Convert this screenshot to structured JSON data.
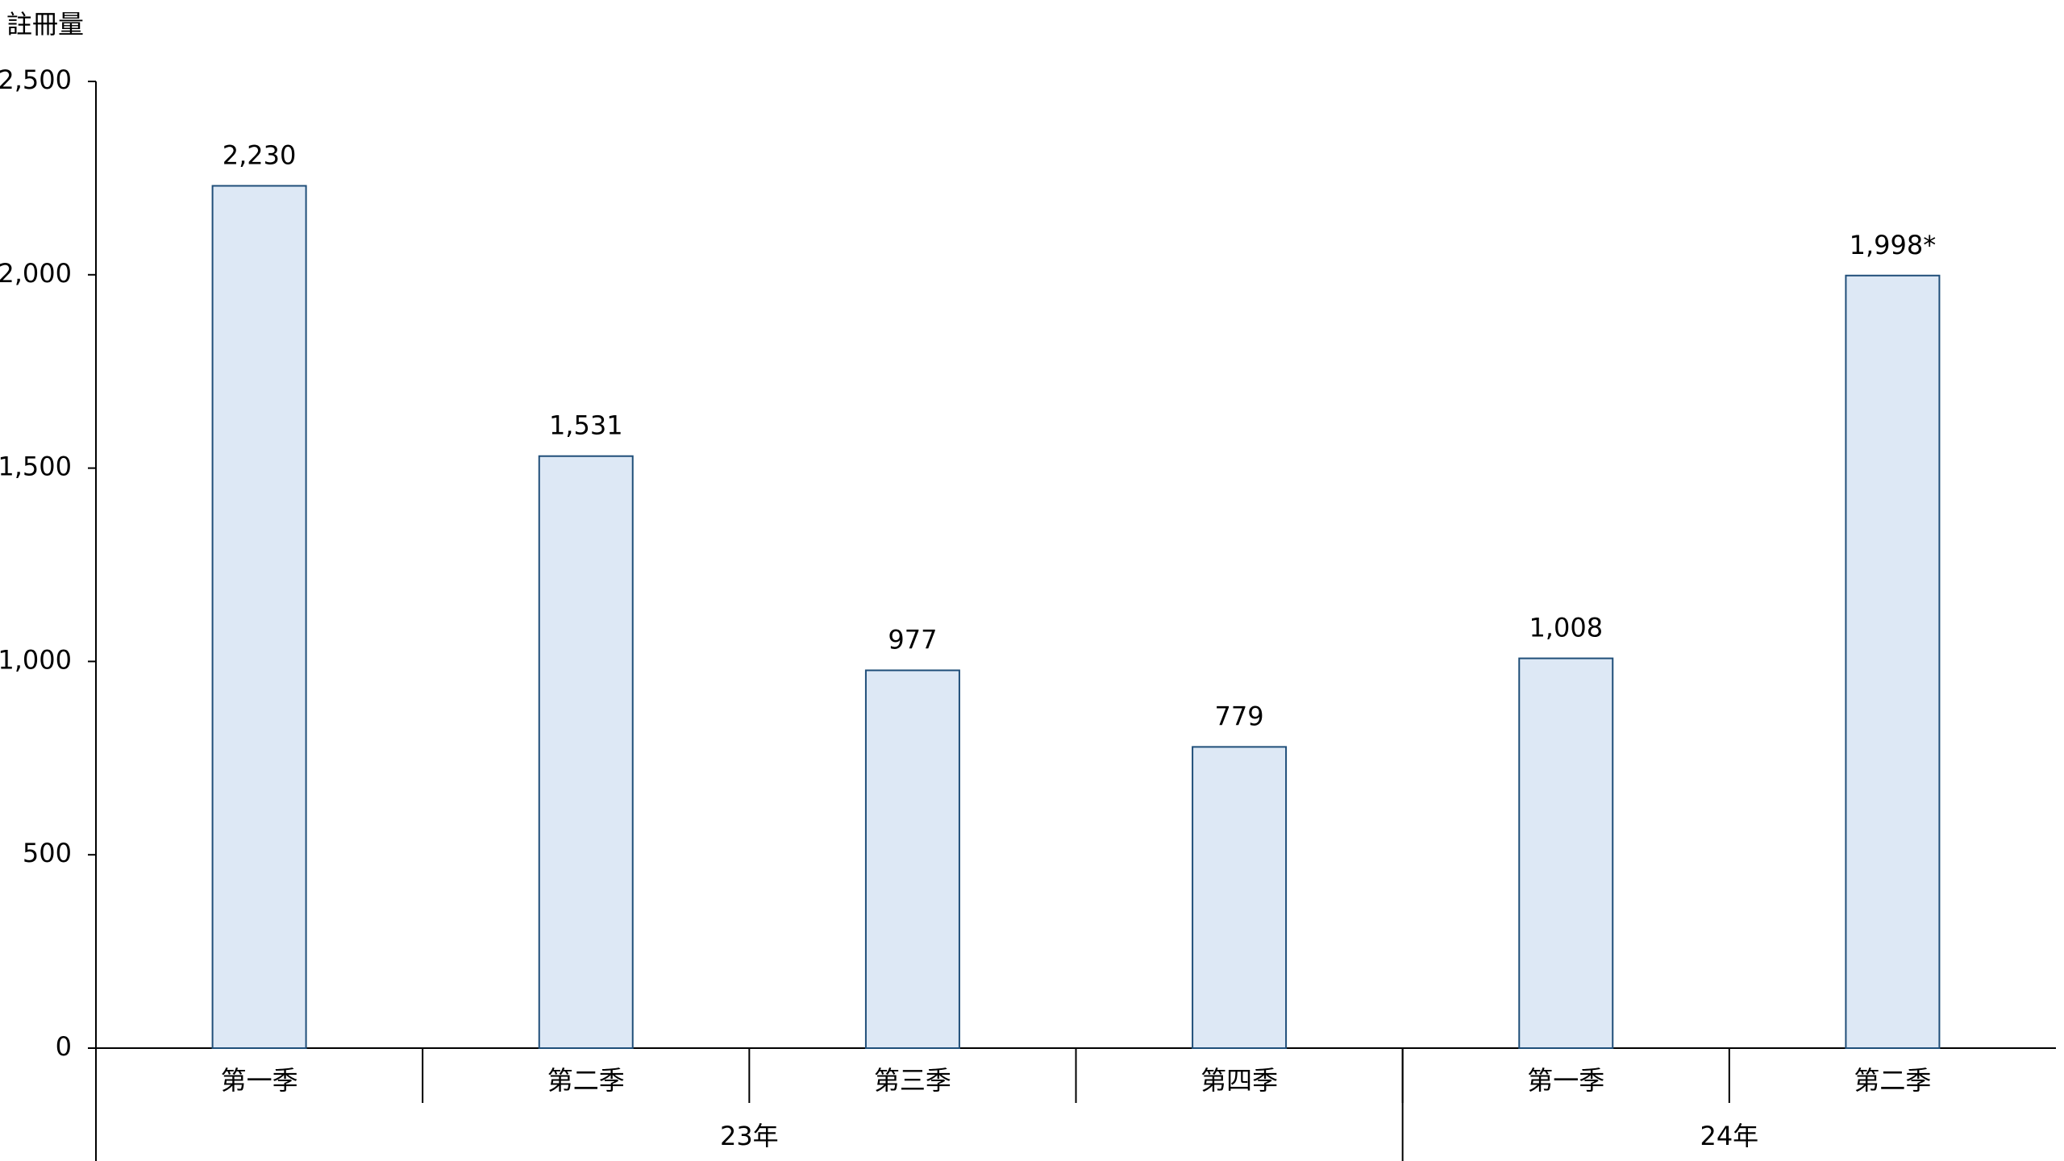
{
  "chart_data": {
    "type": "bar",
    "y_label": "註冊量",
    "categories": [
      "第一季",
      "第二季",
      "第三季",
      "第四季",
      "第一季",
      "第二季"
    ],
    "groups": [
      {
        "label": "23年",
        "span": 4
      },
      {
        "label": "24年",
        "span": 2
      }
    ],
    "values": [
      2230,
      1531,
      977,
      779,
      1008,
      1998
    ],
    "value_labels": [
      "2,230",
      "1,531",
      "977",
      "779",
      "1,008",
      "1,998*"
    ],
    "color": "#dde8f5",
    "edge_color": "#1f4e79",
    "ylim": [
      0,
      2500
    ],
    "yticks": [
      0,
      500,
      {
        "value": 1000,
        "label": "1,000"
      },
      {
        "value": 1500,
        "label": "1,500"
      },
      {
        "value": 2000,
        "label": "2,000"
      },
      {
        "value": 2500,
        "label": "2,500"
      }
    ]
  }
}
